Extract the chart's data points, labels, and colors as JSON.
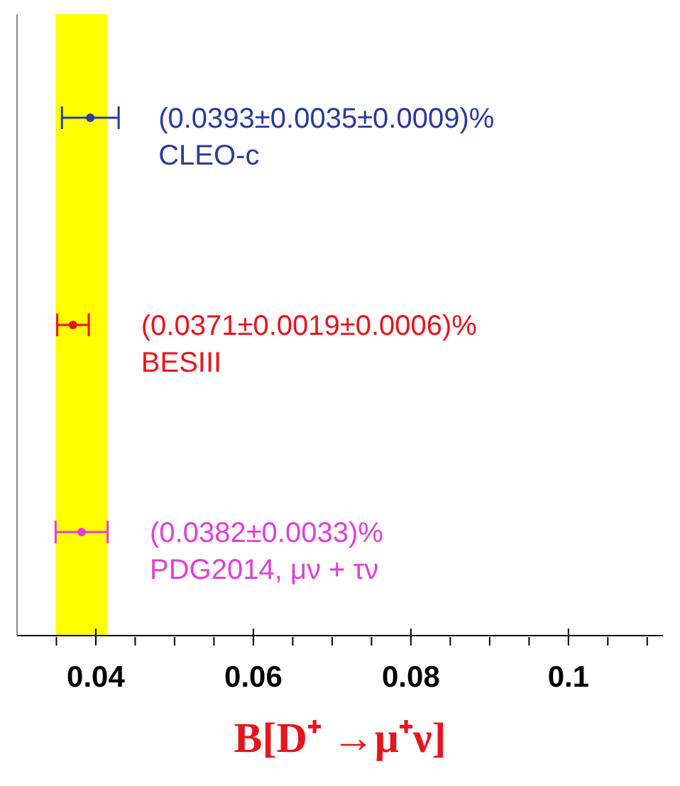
{
  "chart_data": {
    "type": "scatter",
    "orientation": "horizontal",
    "xlabel": "B[D⁺ →μ⁺ν]",
    "categories": [
      null,
      null,
      null
    ],
    "series": [
      {
        "name": "CLEO-c",
        "color": "#2b3a9a",
        "values": [
          0.0393,
          null,
          null
        ],
        "errors": [
          0.0036,
          null,
          null
        ],
        "value_labels": [
          "(0.0393±0.0035±0.0009)%",
          null,
          null
        ]
      },
      {
        "name": "BESIII",
        "color": "#e8141c",
        "values": [
          null,
          0.0371,
          null
        ],
        "errors": [
          null,
          0.002,
          null
        ],
        "value_labels": [
          null,
          "(0.0371±0.0019±0.0006)%",
          null
        ]
      },
      {
        "name": "PDG2014, μν + τν",
        "color": "#e040d8",
        "values": [
          null,
          null,
          0.0382
        ],
        "errors": [
          null,
          null,
          0.0033
        ],
        "value_labels": [
          null,
          null,
          "(0.0382±0.0033)%"
        ]
      }
    ],
    "bands": [
      {
        "axis": "x",
        "from": 0.0349,
        "to": 0.0415,
        "color": "#ffff00"
      }
    ],
    "xlim": [
      0.03,
      0.112
    ],
    "xticks": [
      {
        "value": 0.035,
        "label": null
      },
      0.04,
      {
        "value": 0.045,
        "label": null
      },
      {
        "value": 0.05,
        "label": null
      },
      {
        "value": 0.055,
        "label": null
      },
      0.06,
      {
        "value": 0.065,
        "label": null
      },
      {
        "value": 0.07,
        "label": null
      },
      {
        "value": 0.075,
        "label": null
      },
      0.08,
      {
        "value": 0.085,
        "label": null
      },
      {
        "value": 0.09,
        "label": null
      },
      {
        "value": 0.095,
        "label": null
      },
      0.1,
      {
        "value": 0.105,
        "label": null
      },
      {
        "value": 0.11,
        "label": null
      }
    ],
    "tick_labels": "x",
    "grid": false,
    "legend": false,
    "marker": "circle"
  }
}
